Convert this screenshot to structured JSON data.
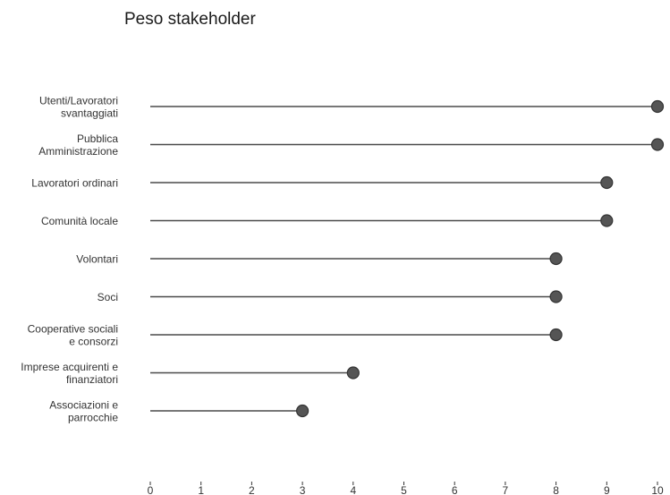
{
  "chart_data": {
    "type": "lollipop",
    "title": "Peso stakeholder",
    "xlabel": "",
    "ylabel": "",
    "xlim": [
      0,
      10
    ],
    "xticks": [
      0,
      1,
      2,
      3,
      4,
      5,
      6,
      7,
      8,
      9,
      10
    ],
    "grid": false,
    "legend": "none",
    "colors": {
      "stem": "#4a4a4a",
      "point_fill": "#555555",
      "point_stroke": "#333333",
      "text": "#333333",
      "axis": "#333333"
    },
    "categories": [
      [
        "Utenti/Lavoratori",
        "svantaggiati"
      ],
      [
        "Pubblica",
        "Amministrazione"
      ],
      [
        "Lavoratori ordinari"
      ],
      [
        "Comunità locale"
      ],
      [
        "Volontari"
      ],
      [
        "Soci"
      ],
      [
        "Cooperative sociali",
        "e consorzi"
      ],
      [
        "Imprese acquirenti e",
        "finanziatori"
      ],
      [
        "Associazioni e",
        "parrocchie"
      ]
    ],
    "values": [
      10,
      10,
      9,
      9,
      8,
      8,
      8,
      4,
      3
    ]
  }
}
